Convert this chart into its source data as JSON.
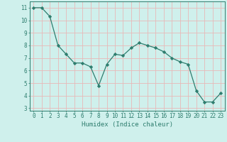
{
  "x": [
    0,
    1,
    2,
    3,
    4,
    5,
    6,
    7,
    8,
    9,
    10,
    11,
    12,
    13,
    14,
    15,
    16,
    17,
    18,
    19,
    20,
    21,
    22,
    23
  ],
  "y": [
    11.0,
    11.0,
    10.3,
    8.0,
    7.3,
    6.6,
    6.6,
    6.3,
    4.8,
    6.5,
    7.3,
    7.2,
    7.8,
    8.2,
    8.0,
    7.8,
    7.5,
    7.0,
    6.7,
    6.5,
    4.4,
    3.5,
    3.5,
    4.2
  ],
  "line_color": "#2e7d6e",
  "marker": "D",
  "marker_size": 2.2,
  "bg_color": "#cff0ec",
  "grid_color": "#e8b8b8",
  "xlabel": "Humidex (Indice chaleur)",
  "ylim": [
    2.8,
    11.5
  ],
  "xlim": [
    -0.5,
    23.5
  ],
  "yticks": [
    3,
    4,
    5,
    6,
    7,
    8,
    9,
    10,
    11
  ],
  "xticks": [
    0,
    1,
    2,
    3,
    4,
    5,
    6,
    7,
    8,
    9,
    10,
    11,
    12,
    13,
    14,
    15,
    16,
    17,
    18,
    19,
    20,
    21,
    22,
    23
  ],
  "tick_color": "#2e7d6e",
  "label_fontsize": 6.5,
  "tick_fontsize": 5.5,
  "spine_color": "#2e7d6e"
}
